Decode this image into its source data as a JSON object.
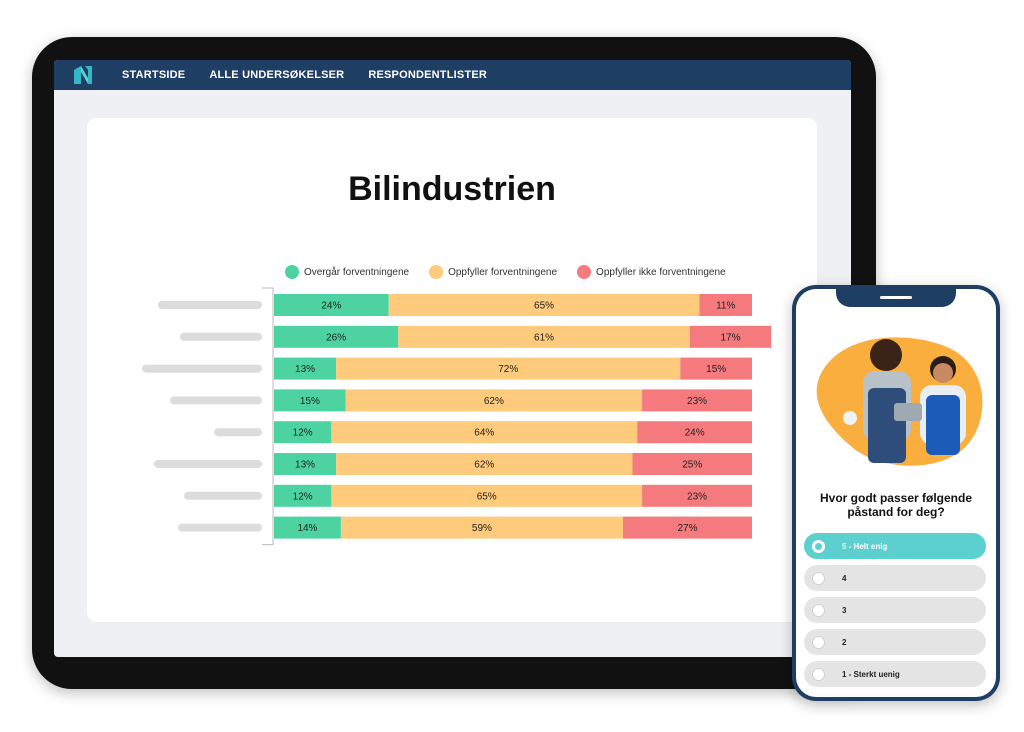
{
  "nav": {
    "items": [
      "STARTSIDE",
      "ALLE UNDERSØKELSER",
      "RESPONDENTLISTER"
    ]
  },
  "colors": {
    "navbar": "#1e3e63",
    "green": "#4cd3a1",
    "orange": "#fdcb7b",
    "red": "#f47a7e",
    "accent": "#5ccfcf"
  },
  "page": {
    "title": "Bilindustrien"
  },
  "chart_data": {
    "type": "bar",
    "orientation": "horizontal-stacked-100",
    "series": [
      {
        "name": "Overgår forventningene",
        "color": "#4cd3a1",
        "values": [
          24,
          26,
          13,
          15,
          12,
          13,
          12,
          14
        ]
      },
      {
        "name": "Oppfyller forventningene",
        "color": "#fdcb7b",
        "values": [
          65,
          61,
          72,
          62,
          64,
          62,
          65,
          59
        ]
      },
      {
        "name": "Oppfyller ikke forventningene",
        "color": "#f47a7e",
        "values": [
          11,
          17,
          15,
          23,
          24,
          25,
          23,
          27
        ]
      }
    ],
    "value_suffix": "%",
    "legend_position": "top",
    "grid": false
  },
  "survey": {
    "question": "Hvor godt passer følgende påstand for deg?",
    "options": [
      {
        "label": "5 - Helt enig",
        "selected": true
      },
      {
        "label": "4",
        "selected": false
      },
      {
        "label": "3",
        "selected": false
      },
      {
        "label": "2",
        "selected": false
      },
      {
        "label": "1 - Sterkt uenig",
        "selected": false
      }
    ]
  }
}
